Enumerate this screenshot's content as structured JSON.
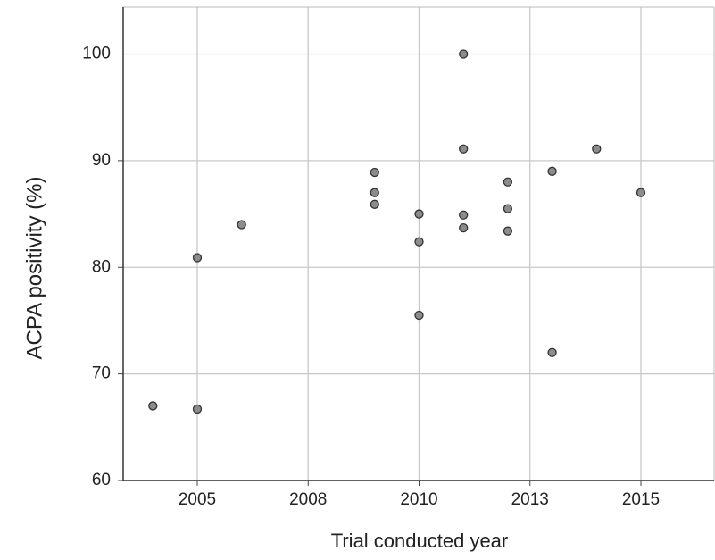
{
  "chart_data": {
    "type": "scatter",
    "xlabel": "Trial conducted year",
    "ylabel": "ACPA positivity  (%)",
    "x": [
      2004,
      2005,
      2005,
      2006,
      2009,
      2009,
      2009,
      2010,
      2010,
      2010,
      2011,
      2011,
      2011,
      2011,
      2012,
      2012,
      2012,
      2013,
      2013,
      2014,
      2015
    ],
    "series": [
      {
        "color": "#8c8c8c",
        "values": [
          67,
          66.7,
          80.9,
          84,
          88.9,
          87,
          85.9,
          85,
          82.4,
          75.5,
          100,
          91.1,
          84.9,
          83.7,
          88,
          85.5,
          83.4,
          89,
          72,
          91.1,
          87
        ]
      }
    ],
    "xlim": [
      2003.33,
      2016.65
    ],
    "xticks": [
      2005,
      {
        "value": 2007.5,
        "label": "2008"
      },
      2010,
      {
        "value": 2012.5,
        "label": "2013"
      },
      2015
    ],
    "ylim": [
      60,
      104.4
    ],
    "yticks": [
      60,
      70,
      80,
      90,
      100
    ],
    "grid": true
  }
}
